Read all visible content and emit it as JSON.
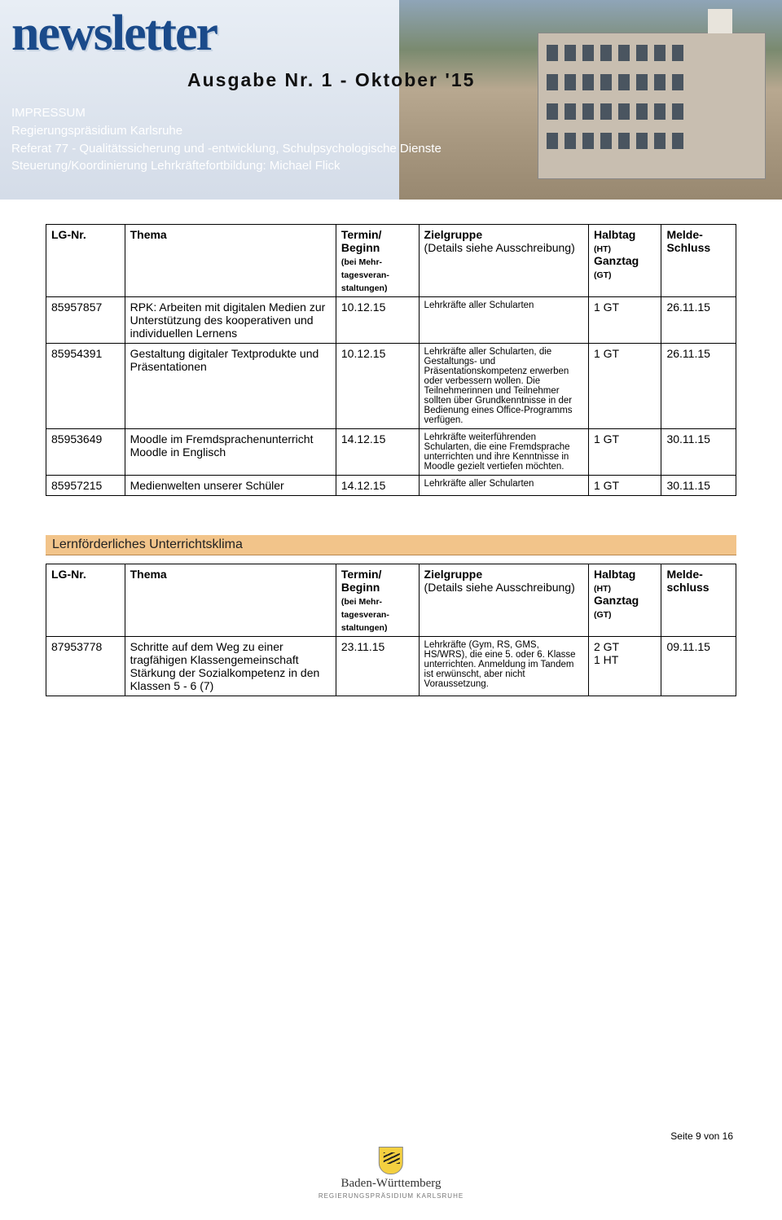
{
  "header": {
    "masthead": "newsletter",
    "issue": "Ausgabe Nr. 1 - Oktober '15",
    "impressum_title": "IMPRESSUM",
    "impressum_lines": [
      "Regierungspräsidium Karlsruhe",
      "Referat 77 - Qualitätssicherung und -entwicklung, Schulpsychologische Dienste",
      "Steuerung/Koordinierung Lehrkräftefortbildung: Michael Flick"
    ]
  },
  "table_head": {
    "c1": "LG-Nr.",
    "c2": "Thema",
    "c3": "Termin/ Beginn",
    "c3_sub": "(bei Mehr-tagesveran-staltungen)",
    "c4": "Zielgruppe",
    "c4_sub": "(Details siehe Ausschreibung)",
    "c5a": "Halbtag",
    "c5a_sub": "(HT)",
    "c5b": "Ganztag",
    "c5b_sub": "(GT)",
    "c6": "Melde-Schluss"
  },
  "table1": [
    {
      "nr": "85957857",
      "thema": "RPK: Arbeiten mit digitalen Medien zur Unterstützung des kooperativen und individuellen Lernens",
      "termin": "10.12.15",
      "ziel": "Lehrkräfte aller Schularten",
      "tag": "1 GT",
      "melde": "26.11.15"
    },
    {
      "nr": "85954391",
      "thema": "Gestaltung digitaler Textprodukte und Präsentationen",
      "termin": "10.12.15",
      "ziel": "Lehrkräfte aller Schularten, die Gestaltungs- und Präsentationskompetenz erwerben oder verbessern wollen. Die Teilnehmerinnen und Teilnehmer sollten über Grundkenntnisse in der Bedienung eines Office-Programms verfügen.",
      "tag": "1 GT",
      "melde": "26.11.15"
    },
    {
      "nr": "85953649",
      "thema": "Moodle im Fremdsprachenunterricht Moodle in Englisch",
      "termin": "14.12.15",
      "ziel": "Lehrkräfte weiterführenden Schularten, die eine Fremdsprache unterrichten und ihre Kenntnisse in Moodle gezielt vertiefen möchten.",
      "tag": "1 GT",
      "melde": "30.11.15"
    },
    {
      "nr": "85957215",
      "thema": "Medienwelten unserer Schüler",
      "termin": "14.12.15",
      "ziel": "Lehrkräfte aller Schularten",
      "tag": "1 GT",
      "melde": "30.11.15"
    }
  ],
  "section2_title": "Lernförderliches Unterrichtsklima",
  "table_head2": {
    "c1": "LG-Nr.",
    "c2": "Thema",
    "c3": "Termin/ Beginn",
    "c3_sub": "(bei Mehr-tagesveran-staltungen)",
    "c4": "Zielgruppe",
    "c4_sub": "(Details siehe Ausschreibung)",
    "c5a": "Halbtag",
    "c5a_sub": "(HT)",
    "c5b": "Ganztag",
    "c5b_sub": "(GT)",
    "c6": "Melde-schluss"
  },
  "table2": [
    {
      "nr": "87953778",
      "thema": "Schritte auf dem Weg zu einer tragfähigen Klassengemeinschaft Stärkung der Sozialkompetenz in den Klassen 5 - 6 (7)",
      "termin": "23.11.15",
      "ziel": "Lehrkräfte (Gym, RS, GMS, HS/WRS), die eine 5. oder 6. Klasse unterrichten. Anmeldung im Tandem ist erwünscht, aber nicht Voraussetzung.",
      "tag": "2 GT\n1 HT",
      "melde": "09.11.15"
    }
  ],
  "footer": {
    "page": "Seite 9 von 16",
    "crest_text1": "Baden-Württemberg",
    "crest_text2": "REGIERUNGSPRÄSIDIUM KARLSRUHE"
  }
}
